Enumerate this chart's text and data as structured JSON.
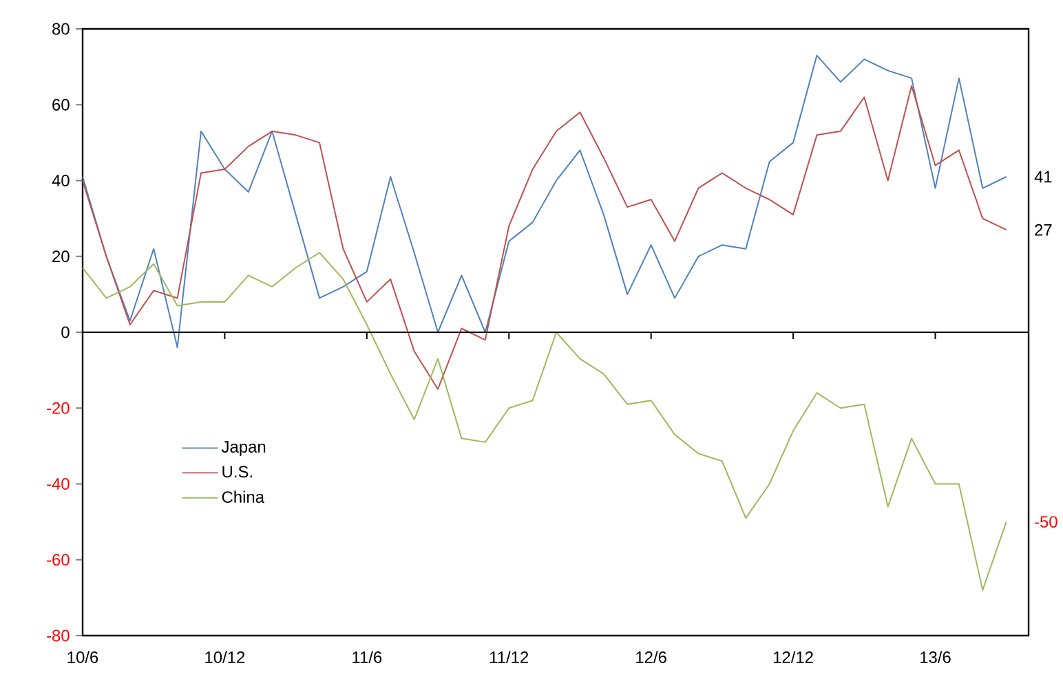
{
  "chart_data": {
    "type": "line",
    "categories": [
      "10/6",
      null,
      null,
      null,
      null,
      null,
      "10/12",
      null,
      null,
      null,
      null,
      null,
      "11/6",
      null,
      null,
      null,
      null,
      null,
      "11/12",
      null,
      null,
      null,
      null,
      null,
      "12/6",
      null,
      null,
      null,
      null,
      null,
      "12/12",
      null,
      null,
      null,
      null,
      null,
      "13/6",
      null,
      null,
      null
    ],
    "series": [
      {
        "name": "Japan",
        "color": "#4f81bd",
        "values": [
          41,
          20,
          3,
          22,
          -4,
          53,
          43,
          37,
          53,
          31,
          9,
          12,
          16,
          41,
          21,
          0,
          15,
          0,
          24,
          29,
          40,
          48,
          31,
          10,
          23,
          9,
          20,
          23,
          22,
          45,
          50,
          73,
          66,
          72,
          69,
          67,
          38,
          67,
          38,
          41
        ],
        "value_labels": [
          null,
          null,
          null,
          null,
          null,
          null,
          null,
          null,
          null,
          null,
          null,
          null,
          null,
          null,
          null,
          null,
          null,
          null,
          null,
          null,
          null,
          null,
          null,
          null,
          null,
          null,
          null,
          null,
          null,
          null,
          null,
          null,
          null,
          null,
          null,
          null,
          null,
          null,
          null,
          "41"
        ]
      },
      {
        "name": "U.S.",
        "color": "#c0504d",
        "values": [
          40,
          20,
          2,
          11,
          9,
          42,
          43,
          49,
          53,
          52,
          50,
          22,
          8,
          14,
          -5,
          -15,
          1,
          -2,
          28,
          43,
          53,
          58,
          46,
          33,
          35,
          24,
          38,
          42,
          38,
          35,
          31,
          52,
          53,
          62,
          40,
          65,
          44,
          48,
          30,
          27
        ],
        "value_labels": [
          null,
          null,
          null,
          null,
          null,
          null,
          null,
          null,
          null,
          null,
          null,
          null,
          null,
          null,
          null,
          null,
          null,
          null,
          null,
          null,
          null,
          null,
          null,
          null,
          null,
          null,
          null,
          null,
          null,
          null,
          null,
          null,
          null,
          null,
          null,
          null,
          null,
          null,
          null,
          "27"
        ]
      },
      {
        "name": "China",
        "color": "#9bbb59",
        "values": [
          17,
          9,
          12,
          18,
          7,
          8,
          8,
          15,
          12,
          17,
          21,
          14,
          2,
          -11,
          -23,
          -7,
          -28,
          -29,
          -20,
          -18,
          0,
          -7,
          -11,
          -19,
          -18,
          -27,
          -32,
          -34,
          -49,
          -40,
          -26,
          -16,
          -20,
          -19,
          -46,
          -28,
          -40,
          -40,
          -68,
          -50
        ],
        "value_labels": [
          null,
          null,
          null,
          null,
          null,
          null,
          null,
          null,
          null,
          null,
          null,
          null,
          null,
          null,
          null,
          null,
          null,
          null,
          null,
          null,
          null,
          null,
          null,
          null,
          null,
          null,
          null,
          null,
          null,
          null,
          null,
          null,
          null,
          null,
          null,
          null,
          null,
          null,
          null,
          "-50"
        ]
      }
    ],
    "ylim": [
      -80,
      80
    ],
    "yticks": [
      -80,
      -60,
      -40,
      -20,
      0,
      20,
      40,
      60,
      80
    ],
    "ref_lines": [
      {
        "axis": "y",
        "value": 0,
        "color": "#000000",
        "line_style": "solid"
      }
    ],
    "legend": "bottom left",
    "marker": "none",
    "line_style": "solid",
    "grid": false
  }
}
